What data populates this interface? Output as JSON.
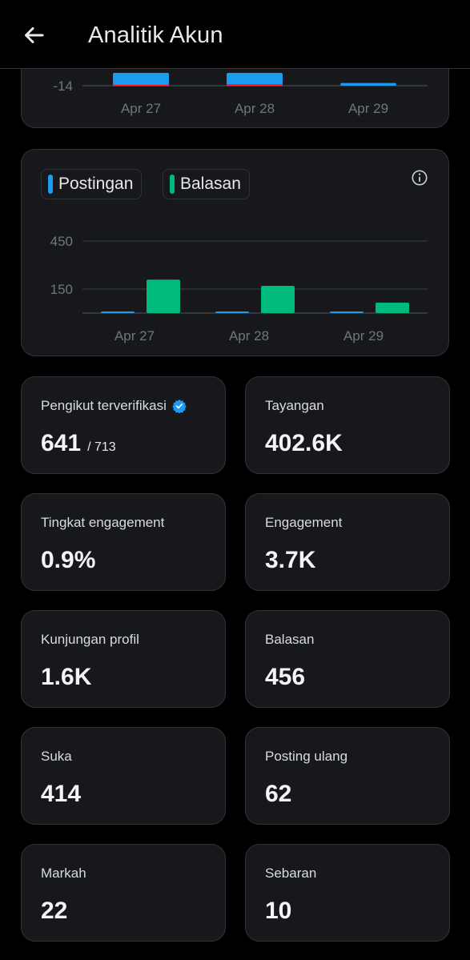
{
  "header": {
    "title": "Analitik Akun",
    "back_icon": "arrow-left-icon"
  },
  "colors": {
    "background": "#000000",
    "card": "#16181c",
    "border": "#2f3336",
    "blue": "#1d9bf0",
    "green": "#00ba7c",
    "red": "#f4212e",
    "axis_text": "#71767b"
  },
  "top_chart": {
    "chart_data": {
      "type": "bar",
      "categories": [
        "Apr 27",
        "Apr 28",
        "Apr 29"
      ],
      "series": [
        {
          "values": [
            -14,
            -14,
            -3
          ]
        },
        {
          "values": [
            -0.5,
            -1,
            0
          ]
        }
      ],
      "ytick_label": "-14"
    }
  },
  "main_chart": {
    "legend": [
      {
        "label": "Postingan",
        "color": "#1d9bf0"
      },
      {
        "label": "Balasan",
        "color": "#00ba7c"
      }
    ],
    "chart_data": {
      "type": "bar",
      "categories": [
        "Apr 27",
        "Apr 28",
        "Apr 29"
      ],
      "series": [
        {
          "name": "Postingan",
          "values": [
            10,
            10,
            3
          ]
        },
        {
          "name": "Balasan",
          "values": [
            209,
            170,
            65
          ]
        }
      ],
      "yticks": [
        450,
        150
      ],
      "ylim": [
        0,
        600
      ]
    }
  },
  "metrics": [
    {
      "label": "Pengikut terverifikasi",
      "value": "641",
      "sub": "/ 713",
      "verified": true
    },
    {
      "label": "Tayangan",
      "value": "402.6K"
    },
    {
      "label": "Tingkat engagement",
      "value": "0.9%"
    },
    {
      "label": "Engagement",
      "value": "3.7K"
    },
    {
      "label": "Kunjungan profil",
      "value": "1.6K"
    },
    {
      "label": "Balasan",
      "value": "456"
    },
    {
      "label": "Suka",
      "value": "414"
    },
    {
      "label": "Posting ulang",
      "value": "62"
    },
    {
      "label": "Markah",
      "value": "22"
    },
    {
      "label": "Sebaran",
      "value": "10"
    }
  ]
}
